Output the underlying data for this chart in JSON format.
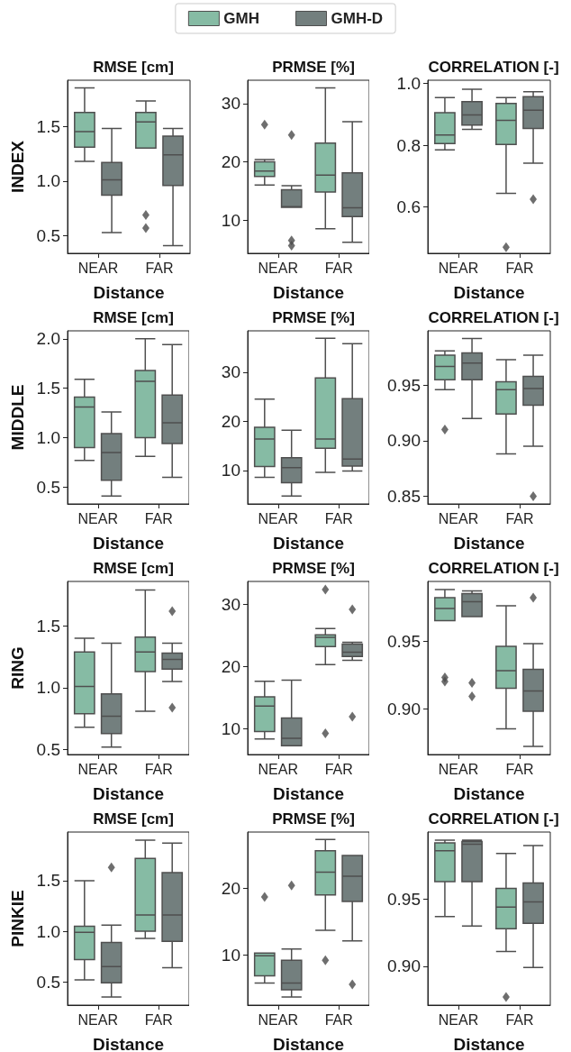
{
  "chart_data": [
    {
      "type": "box",
      "title": "RMSE [cm]",
      "ylabel": "INDEX",
      "xlabel": "Distance",
      "categories": [
        "NEAR",
        "FAR"
      ],
      "ylim": [
        0.34,
        1.92
      ],
      "yticks": [
        0.5,
        {
          "value": 1,
          "label": "1.0"
        },
        1.5
      ],
      "legend": "top",
      "series": [
        {
          "name": "GMH",
          "color": "#86bba4",
          "boxes": [
            {
              "low": 1.18,
              "q1": 1.31,
              "median": 1.45,
              "q3": 1.625,
              "high": 1.85
            },
            {
              "low": 1.3,
              "q1": 1.3,
              "median": 1.54,
              "q3": 1.625,
              "high": 1.73,
              "outliers": [
                0.69,
                0.57
              ]
            }
          ]
        },
        {
          "name": "GMH-D",
          "color": "#737f7e",
          "boxes": [
            {
              "low": 0.53,
              "q1": 0.87,
              "median": 1.01,
              "q3": 1.17,
              "high": 1.48
            },
            {
              "low": 0.41,
              "q1": 0.96,
              "median": 1.24,
              "q3": 1.41,
              "high": 1.48
            }
          ]
        }
      ]
    },
    {
      "type": "box",
      "title": "PRMSE [%]",
      "xlabel": "Distance",
      "categories": [
        "NEAR",
        "FAR"
      ],
      "ylim": [
        4.3,
        34
      ],
      "yticks": [
        10,
        20,
        30
      ],
      "series": [
        {
          "color": "#86bba4",
          "boxes": [
            {
              "low": 16,
              "q1": 17.5,
              "median": 18.4,
              "q3": 20,
              "high": 20.4,
              "outliers": [
                26.4
              ]
            },
            {
              "low": 8.5,
              "q1": 14.8,
              "median": 17.7,
              "q3": 23.2,
              "high": 32.7
            }
          ]
        },
        {
          "color": "#737f7e",
          "boxes": [
            {
              "low": 12.2,
              "q1": 12.2,
              "median": 12.3,
              "q3": 15.2,
              "high": 15.9,
              "outliers": [
                24.6,
                6.5,
                5.6
              ]
            },
            {
              "low": 6.2,
              "q1": 10.6,
              "median": 12.1,
              "q3": 18.1,
              "high": 26.9
            }
          ]
        }
      ]
    },
    {
      "type": "box",
      "title": "CORRELATION [-]",
      "xlabel": "Distance",
      "categories": [
        "NEAR",
        "FAR"
      ],
      "ylim": [
        0.45,
        1.01
      ],
      "yticks": [
        0.6,
        0.8,
        {
          "value": 1,
          "label": "1.0"
        }
      ],
      "series": [
        {
          "color": "#86bba4",
          "boxes": [
            {
              "low": 0.785,
              "q1": 0.805,
              "median": 0.833,
              "q3": 0.905,
              "high": 0.954
            },
            {
              "low": 0.644,
              "q1": 0.802,
              "median": 0.88,
              "q3": 0.935,
              "high": 0.954,
              "outliers": [
                0.47
              ]
            }
          ]
        },
        {
          "color": "#737f7e",
          "boxes": [
            {
              "low": 0.851,
              "q1": 0.865,
              "median": 0.898,
              "q3": 0.941,
              "high": 0.981
            },
            {
              "low": 0.742,
              "q1": 0.854,
              "median": 0.913,
              "q3": 0.957,
              "high": 0.973,
              "outliers": [
                0.625
              ]
            }
          ]
        }
      ]
    },
    {
      "type": "box",
      "title": "RMSE [cm]",
      "ylabel": "MIDDLE",
      "xlabel": "Distance",
      "categories": [
        "NEAR",
        "FAR"
      ],
      "ylim": [
        0.33,
        2.08
      ],
      "yticks": [
        0.5,
        {
          "value": 1,
          "label": "1.0"
        },
        1.5,
        {
          "value": 2,
          "label": "2.0"
        }
      ],
      "series": [
        {
          "color": "#86bba4",
          "boxes": [
            {
              "low": 0.77,
              "q1": 0.9,
              "median": 1.31,
              "q3": 1.41,
              "high": 1.59
            },
            {
              "low": 0.81,
              "q1": 1,
              "median": 1.57,
              "q3": 1.68,
              "high": 2
            }
          ]
        },
        {
          "color": "#737f7e",
          "boxes": [
            {
              "low": 0.41,
              "q1": 0.57,
              "median": 0.85,
              "q3": 1.04,
              "high": 1.26
            },
            {
              "low": 0.6,
              "q1": 0.94,
              "median": 1.15,
              "q3": 1.43,
              "high": 1.94
            }
          ]
        }
      ]
    },
    {
      "type": "box",
      "title": "PRMSE [%]",
      "xlabel": "Distance",
      "categories": [
        "NEAR",
        "FAR"
      ],
      "ylim": [
        3.2,
        38.4
      ],
      "yticks": [
        10,
        20,
        30
      ],
      "series": [
        {
          "color": "#86bba4",
          "boxes": [
            {
              "low": 8.6,
              "q1": 10.8,
              "median": 16.4,
              "q3": 18.8,
              "high": 24.5
            },
            {
              "low": 9.6,
              "q1": 14.5,
              "median": 16.4,
              "q3": 28.8,
              "high": 36.9
            }
          ]
        },
        {
          "color": "#737f7e",
          "boxes": [
            {
              "low": 4.8,
              "q1": 7.5,
              "median": 10.6,
              "q3": 12.6,
              "high": 18.2
            },
            {
              "low": 9.9,
              "q1": 10.9,
              "median": 12.3,
              "q3": 24.6,
              "high": 35.8
            }
          ]
        }
      ]
    },
    {
      "type": "box",
      "title": "CORRELATION [-]",
      "xlabel": "Distance",
      "categories": [
        "NEAR",
        "FAR"
      ],
      "ylim": [
        0.843,
        0.999
      ],
      "yticks": [
        0.85,
        {
          "value": 0.9,
          "label": "0.90"
        },
        0.95
      ],
      "series": [
        {
          "color": "#86bba4",
          "boxes": [
            {
              "low": 0.946,
              "q1": 0.955,
              "median": 0.967,
              "q3": 0.977,
              "high": 0.981,
              "outliers": [
                0.91
              ]
            },
            {
              "low": 0.888,
              "q1": 0.924,
              "median": 0.946,
              "q3": 0.953,
              "high": 0.973
            }
          ]
        },
        {
          "color": "#737f7e",
          "boxes": [
            {
              "low": 0.92,
              "q1": 0.955,
              "median": 0.97,
              "q3": 0.979,
              "high": 0.992
            },
            {
              "low": 0.895,
              "q1": 0.932,
              "median": 0.947,
              "q3": 0.958,
              "high": 0.977,
              "outliers": [
                0.85
              ]
            }
          ]
        }
      ]
    },
    {
      "type": "box",
      "title": "RMSE [cm]",
      "ylabel": "RING",
      "xlabel": "Distance",
      "categories": [
        "NEAR",
        "FAR"
      ],
      "ylim": [
        0.46,
        1.86
      ],
      "yticks": [
        0.5,
        {
          "value": 1,
          "label": "1.0"
        },
        1.5
      ],
      "series": [
        {
          "color": "#86bba4",
          "boxes": [
            {
              "low": 0.68,
              "q1": 0.79,
              "median": 1.01,
              "q3": 1.29,
              "high": 1.4
            },
            {
              "low": 0.81,
              "q1": 1.13,
              "median": 1.29,
              "q3": 1.41,
              "high": 1.79
            }
          ]
        },
        {
          "color": "#737f7e",
          "boxes": [
            {
              "low": 0.52,
              "q1": 0.63,
              "median": 0.77,
              "q3": 0.95,
              "high": 1.36
            },
            {
              "low": 1.05,
              "q1": 1.15,
              "median": 1.23,
              "q3": 1.28,
              "high": 1.36,
              "outliers": [
                1.62,
                0.84
              ]
            }
          ]
        }
      ]
    },
    {
      "type": "box",
      "title": "PRMSE [%]",
      "xlabel": "Distance",
      "categories": [
        "NEAR",
        "FAR"
      ],
      "ylim": [
        5.8,
        33.7
      ],
      "yticks": [
        10,
        20,
        30
      ],
      "series": [
        {
          "color": "#86bba4",
          "boxes": [
            {
              "low": 8.3,
              "q1": 9.5,
              "median": 13.6,
              "q3": 15.1,
              "high": 17.6
            },
            {
              "low": 20.3,
              "q1": 23.2,
              "median": 24.7,
              "q3": 25.1,
              "high": 26.1,
              "outliers": [
                32.4,
                9.2
              ]
            }
          ]
        },
        {
          "color": "#737f7e",
          "boxes": [
            {
              "low": 7.2,
              "q1": 7.2,
              "median": 8.4,
              "q3": 11.7,
              "high": 17.8
            },
            {
              "low": 21,
              "q1": 21.6,
              "median": 22.3,
              "q3": 23.6,
              "high": 23.9,
              "outliers": [
                29.2,
                11.9
              ]
            }
          ]
        }
      ]
    },
    {
      "type": "box",
      "title": "CORRELATION [-]",
      "xlabel": "Distance",
      "categories": [
        "NEAR",
        "FAR"
      ],
      "ylim": [
        0.866,
        0.994
      ],
      "yticks": [
        {
          "value": 0.9,
          "label": "0.90"
        },
        0.95
      ],
      "series": [
        {
          "color": "#86bba4",
          "boxes": [
            {
              "low": 0.965,
              "q1": 0.965,
              "median": 0.974,
              "q3": 0.982,
              "high": 0.988,
              "outliers": [
                0.923,
                0.92
              ]
            },
            {
              "low": 0.885,
              "q1": 0.915,
              "median": 0.928,
              "q3": 0.946,
              "high": 0.976
            }
          ]
        },
        {
          "color": "#737f7e",
          "boxes": [
            {
              "low": 0.968,
              "q1": 0.968,
              "median": 0.979,
              "q3": 0.985,
              "high": 0.987,
              "outliers": [
                0.919,
                0.909
              ]
            },
            {
              "low": 0.872,
              "q1": 0.898,
              "median": 0.913,
              "q3": 0.929,
              "high": 0.948,
              "outliers": [
                0.982
              ]
            }
          ]
        }
      ]
    },
    {
      "type": "box",
      "title": "RMSE [cm]",
      "ylabel": "PINKIE",
      "xlabel": "Distance",
      "categories": [
        "NEAR",
        "FAR"
      ],
      "ylim": [
        0.27,
        1.98
      ],
      "yticks": [
        0.5,
        {
          "value": 1,
          "label": "1.0"
        },
        1.5
      ],
      "series": [
        {
          "color": "#86bba4",
          "boxes": [
            {
              "low": 0.52,
              "q1": 0.72,
              "median": 0.99,
              "q3": 1.05,
              "high": 1.5
            },
            {
              "low": 0.93,
              "q1": 1,
              "median": 1.16,
              "q3": 1.72,
              "high": 1.9
            }
          ]
        },
        {
          "color": "#737f7e",
          "boxes": [
            {
              "low": 0.35,
              "q1": 0.49,
              "median": 0.65,
              "q3": 0.89,
              "high": 1.06,
              "outliers": [
                1.63
              ]
            },
            {
              "low": 0.64,
              "q1": 0.9,
              "median": 1.16,
              "q3": 1.58,
              "high": 1.87
            }
          ]
        }
      ]
    },
    {
      "type": "box",
      "title": "PRMSE [%]",
      "xlabel": "Distance",
      "categories": [
        "NEAR",
        "FAR"
      ],
      "ylim": [
        2.5,
        28.4
      ],
      "yticks": [
        10,
        20
      ],
      "series": [
        {
          "color": "#86bba4",
          "boxes": [
            {
              "low": 5.8,
              "q1": 6.9,
              "median": 9.9,
              "q3": 10.3,
              "high": 10.3,
              "outliers": [
                18.7
              ]
            },
            {
              "low": 13.7,
              "q1": 19,
              "median": 22.4,
              "q3": 25.6,
              "high": 27.3,
              "outliers": [
                9.2
              ]
            }
          ]
        },
        {
          "color": "#737f7e",
          "boxes": [
            {
              "low": 3.7,
              "q1": 4.8,
              "median": 5.8,
              "q3": 9.2,
              "high": 10.9,
              "outliers": [
                20.4
              ]
            },
            {
              "low": 12.1,
              "q1": 18,
              "median": 21.8,
              "q3": 24.9,
              "high": 24.9,
              "outliers": [
                5.6
              ]
            }
          ]
        }
      ]
    },
    {
      "type": "box",
      "title": "CORRELATION [-]",
      "xlabel": "Distance",
      "categories": [
        "NEAR",
        "FAR"
      ],
      "ylim": [
        0.871,
        1.0
      ],
      "yticks": [
        {
          "value": 0.9,
          "label": "0.90"
        },
        0.95
      ],
      "series": [
        {
          "color": "#86bba4",
          "boxes": [
            {
              "low": 0.937,
              "q1": 0.963,
              "median": 0.986,
              "q3": 0.992,
              "high": 0.994
            },
            {
              "low": 0.911,
              "q1": 0.928,
              "median": 0.944,
              "q3": 0.958,
              "high": 0.984,
              "outliers": [
                0.877
              ]
            }
          ]
        },
        {
          "color": "#737f7e",
          "boxes": [
            {
              "low": 0.93,
              "q1": 0.963,
              "median": 0.991,
              "q3": 0.993,
              "high": 0.994
            },
            {
              "low": 0.899,
              "q1": 0.932,
              "median": 0.948,
              "q3": 0.962,
              "high": 0.99
            }
          ]
        }
      ]
    }
  ]
}
